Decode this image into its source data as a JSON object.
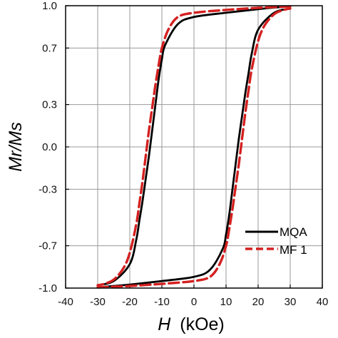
{
  "chart_data": {
    "type": "line",
    "xlabel_var": "H",
    "xlabel_unit": "(kOe)",
    "ylabel": "Mr/Ms",
    "xlim": [
      -40,
      40
    ],
    "ylim": [
      -1.0,
      1.0
    ],
    "x_ticks": [
      -40,
      -30,
      -20,
      -10,
      0,
      10,
      20,
      30,
      40
    ],
    "y_ticks": [
      -1.0,
      -0.7,
      -0.3,
      0.0,
      0.3,
      0.7,
      1.0
    ],
    "y_tick_labels": [
      "-1.0",
      "-0.7",
      "-0.3",
      "0.0",
      "0.3",
      "0.7",
      "1.0"
    ],
    "grid": true,
    "legend_position": "lower-right",
    "series": [
      {
        "name": "MQA",
        "color": "#000000",
        "style": "solid",
        "descending": {
          "x": [
            30,
            24,
            20,
            10,
            0,
            -5,
            -9,
            -10,
            -11,
            -12,
            -13,
            -14,
            -15,
            -16,
            -17,
            -18,
            -20,
            -25,
            -30
          ],
          "y": [
            0.995,
            0.985,
            0.975,
            0.95,
            0.92,
            0.87,
            0.72,
            0.62,
            0.48,
            0.3,
            0.12,
            -0.06,
            -0.22,
            -0.38,
            -0.52,
            -0.66,
            -0.83,
            -0.95,
            -0.98
          ]
        },
        "ascending": {
          "x": [
            -30,
            -25,
            -20,
            -10,
            0,
            5,
            9,
            10,
            11,
            12,
            13,
            14,
            15,
            16,
            17,
            18,
            20,
            25,
            30
          ],
          "y": [
            -0.995,
            -0.985,
            -0.975,
            -0.95,
            -0.92,
            -0.87,
            -0.72,
            -0.62,
            -0.48,
            -0.3,
            -0.12,
            0.06,
            0.22,
            0.38,
            0.52,
            0.66,
            0.83,
            0.95,
            0.98
          ]
        }
      },
      {
        "name": "MF 1",
        "color": "#d42020",
        "style": "dashed",
        "descending": {
          "x": [
            30,
            20,
            10,
            0,
            -5,
            -8,
            -10,
            -11,
            -12,
            -13,
            -14,
            -15,
            -16,
            -17,
            -18,
            -20,
            -22,
            -25,
            -28,
            -30
          ],
          "y": [
            0.995,
            0.985,
            0.97,
            0.95,
            0.92,
            0.83,
            0.7,
            0.58,
            0.44,
            0.28,
            0.12,
            -0.06,
            -0.24,
            -0.4,
            -0.55,
            -0.75,
            -0.86,
            -0.94,
            -0.97,
            -0.98
          ]
        },
        "ascending": {
          "x": [
            -30,
            -20,
            -10,
            0,
            5,
            8,
            10,
            11,
            12,
            13,
            14,
            15,
            16,
            17,
            18,
            20,
            22,
            25,
            28,
            30
          ],
          "y": [
            -0.995,
            -0.985,
            -0.97,
            -0.95,
            -0.92,
            -0.83,
            -0.7,
            -0.58,
            -0.44,
            -0.28,
            -0.12,
            0.06,
            0.24,
            0.4,
            0.55,
            0.75,
            0.86,
            0.94,
            0.97,
            0.98
          ]
        }
      }
    ]
  }
}
